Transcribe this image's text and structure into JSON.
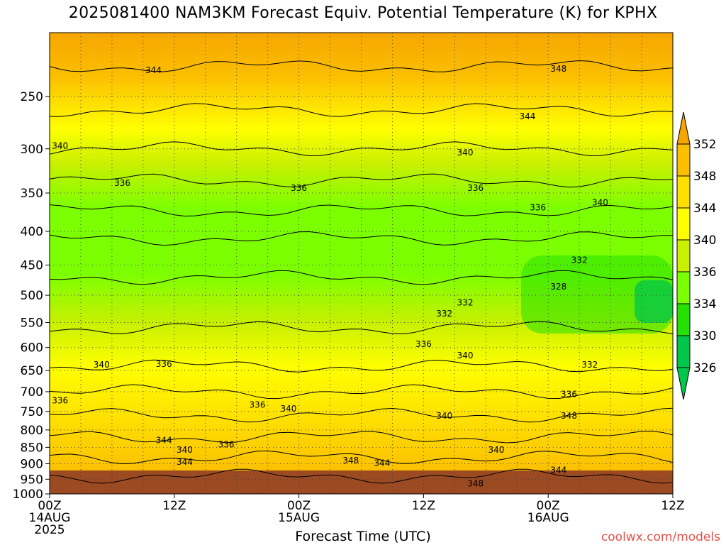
{
  "title": "2025081400 NAM3KM Forecast Equiv. Potential Temperature (K) for KPHX",
  "watermark": "coolwx.com/models",
  "chart_data": {
    "type": "heatmap",
    "title": "2025081400 NAM3KM Forecast Equiv. Potential Temperature (K) for KPHX",
    "xlabel": "Forecast Time (UTC)",
    "ylabel": "",
    "x_range_hours": [
      0,
      60
    ],
    "y_range_hPa": [
      1000,
      200
    ],
    "y_scale": "log-pressure",
    "grid": true,
    "x_ticks": [
      {
        "hour": 0,
        "lines": [
          "00Z",
          "14AUG",
          "2025"
        ]
      },
      {
        "hour": 12,
        "lines": [
          "12Z"
        ]
      },
      {
        "hour": 24,
        "lines": [
          "00Z",
          "15AUG"
        ]
      },
      {
        "hour": 36,
        "lines": [
          "12Z"
        ]
      },
      {
        "hour": 48,
        "lines": [
          "00Z",
          "16AUG"
        ]
      },
      {
        "hour": 60,
        "lines": [
          "12Z"
        ]
      }
    ],
    "y_ticks": [
      250,
      300,
      350,
      400,
      450,
      500,
      550,
      600,
      650,
      700,
      750,
      800,
      850,
      900,
      950,
      1000
    ],
    "colorbar": {
      "ticks": [
        352,
        348,
        344,
        340,
        336,
        334,
        330,
        326
      ],
      "colors": [
        "#f7a600",
        "#fbbf00",
        "#ffe000",
        "#ffff00",
        "#c8f000",
        "#7cff00",
        "#26e000",
        "#00c64a"
      ]
    },
    "contour_labels": [
      {
        "value": 344,
        "hour": 10,
        "p": 228
      },
      {
        "value": 348,
        "hour": 49,
        "p": 227
      },
      {
        "value": 344,
        "hour": 46,
        "p": 268
      },
      {
        "value": 340,
        "hour": 1,
        "p": 297
      },
      {
        "value": 340,
        "hour": 40,
        "p": 304
      },
      {
        "value": 336,
        "hour": 7,
        "p": 338
      },
      {
        "value": 336,
        "hour": 24,
        "p": 344
      },
      {
        "value": 336,
        "hour": 41,
        "p": 344
      },
      {
        "value": 336,
        "hour": 47,
        "p": 368
      },
      {
        "value": 340,
        "hour": 53,
        "p": 362
      },
      {
        "value": 332,
        "hour": 51,
        "p": 442
      },
      {
        "value": 328,
        "hour": 49,
        "p": 485
      },
      {
        "value": 332,
        "hour": 40,
        "p": 513
      },
      {
        "value": 332,
        "hour": 38,
        "p": 533
      },
      {
        "value": 336,
        "hour": 36,
        "p": 593
      },
      {
        "value": 340,
        "hour": 5,
        "p": 637
      },
      {
        "value": 336,
        "hour": 11,
        "p": 636
      },
      {
        "value": 340,
        "hour": 40,
        "p": 617
      },
      {
        "value": 332,
        "hour": 52,
        "p": 637
      },
      {
        "value": 336,
        "hour": 1,
        "p": 722
      },
      {
        "value": 336,
        "hour": 20,
        "p": 733
      },
      {
        "value": 340,
        "hour": 23,
        "p": 743
      },
      {
        "value": 336,
        "hour": 50,
        "p": 706
      },
      {
        "value": 340,
        "hour": 38,
        "p": 762
      },
      {
        "value": 348,
        "hour": 50,
        "p": 762
      },
      {
        "value": 344,
        "hour": 11,
        "p": 830
      },
      {
        "value": 340,
        "hour": 13,
        "p": 858
      },
      {
        "value": 336,
        "hour": 17,
        "p": 842
      },
      {
        "value": 344,
        "hour": 13,
        "p": 895
      },
      {
        "value": 348,
        "hour": 29,
        "p": 890
      },
      {
        "value": 344,
        "hour": 32,
        "p": 898
      },
      {
        "value": 340,
        "hour": 43,
        "p": 858
      },
      {
        "value": 344,
        "hour": 49,
        "p": 920
      },
      {
        "value": 348,
        "hour": 41,
        "p": 965
      }
    ]
  }
}
